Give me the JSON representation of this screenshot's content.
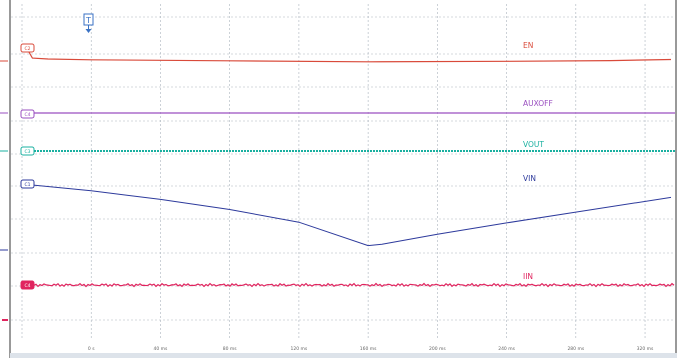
{
  "trigger": {
    "marker": "T"
  },
  "channels": [
    {
      "id": "C2",
      "name": "EN",
      "color": "#d94a3a"
    },
    {
      "id": "C4",
      "name": "AUXOFF",
      "color": "#9a4fc0"
    },
    {
      "id": "C3",
      "name": "VOUT",
      "color": "#1ab0a0"
    },
    {
      "id": "C1",
      "name": "VIN",
      "color": "#2d3a9c"
    },
    {
      "id": "C4",
      "name": "IIN",
      "color": "#e0245e"
    }
  ],
  "time_axis": {
    "tick_labels": [
      "0 s",
      "40 ms",
      "80 ms",
      "120 ms",
      "160 ms",
      "200 ms",
      "240 ms",
      "280 ms",
      "320 ms"
    ]
  },
  "chart_data": {
    "type": "line",
    "x_unit": "ms",
    "xlim": [
      -40,
      335
    ],
    "series": [
      {
        "name": "EN",
        "x": [
          -40,
          -36,
          -34,
          -25,
          0,
          80,
          160,
          240,
          300,
          335
        ],
        "level": [
          0.98,
          0.95,
          0.66,
          0.55,
          0.47,
          0.36,
          0.25,
          0.3,
          0.38,
          0.5
        ]
      },
      {
        "name": "AUXOFF",
        "x": [
          -40,
          335
        ],
        "level": [
          0.5,
          0.5
        ]
      },
      {
        "name": "VOUT",
        "x": [
          -40,
          335
        ],
        "level": [
          0.5,
          0.5
        ]
      },
      {
        "name": "VIN",
        "x": [
          -40,
          0,
          40,
          80,
          120,
          160,
          168,
          200,
          240,
          280,
          335
        ],
        "level": [
          1.0,
          0.9,
          0.77,
          0.62,
          0.43,
          0.08,
          0.1,
          0.25,
          0.42,
          0.58,
          0.8
        ]
      },
      {
        "name": "IIN",
        "x": [
          -40,
          335
        ],
        "level": [
          0.5,
          0.5
        ]
      }
    ]
  }
}
